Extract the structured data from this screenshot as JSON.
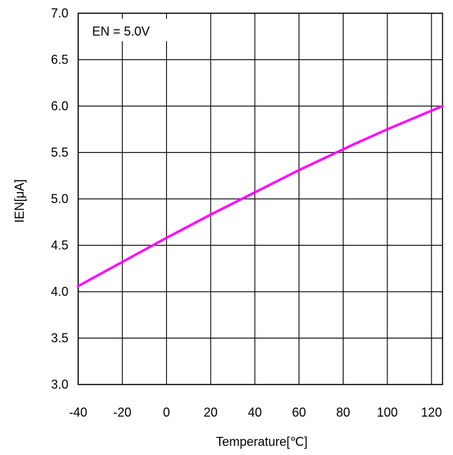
{
  "chart_data": {
    "type": "line",
    "xlabel": "Temperature[℃]",
    "ylabel": "IEN[μA]",
    "annotation": "EN = 5.0V",
    "xlim": [
      -40,
      125
    ],
    "ylim": [
      3.0,
      7.0
    ],
    "x_ticks": [
      -40,
      -20,
      0,
      20,
      40,
      60,
      80,
      100,
      120
    ],
    "x_tick_labels": [
      "-40",
      "-20",
      "0",
      "20",
      "40",
      "60",
      "80",
      "100",
      "120"
    ],
    "y_ticks": [
      3.0,
      3.5,
      4.0,
      4.5,
      5.0,
      5.5,
      6.0,
      6.5,
      7.0
    ],
    "y_tick_labels": [
      "3.0",
      "3.5",
      "4.0",
      "4.5",
      "5.0",
      "5.5",
      "6.0",
      "6.5",
      "7.0"
    ],
    "grid": true,
    "series": [
      {
        "color": "#ff00ff",
        "x": [
          -40,
          -20,
          0,
          20,
          40,
          60,
          85,
          100,
          125
        ],
        "y": [
          4.06,
          4.32,
          4.58,
          4.83,
          5.07,
          5.31,
          5.59,
          5.75,
          6.0
        ]
      }
    ]
  }
}
